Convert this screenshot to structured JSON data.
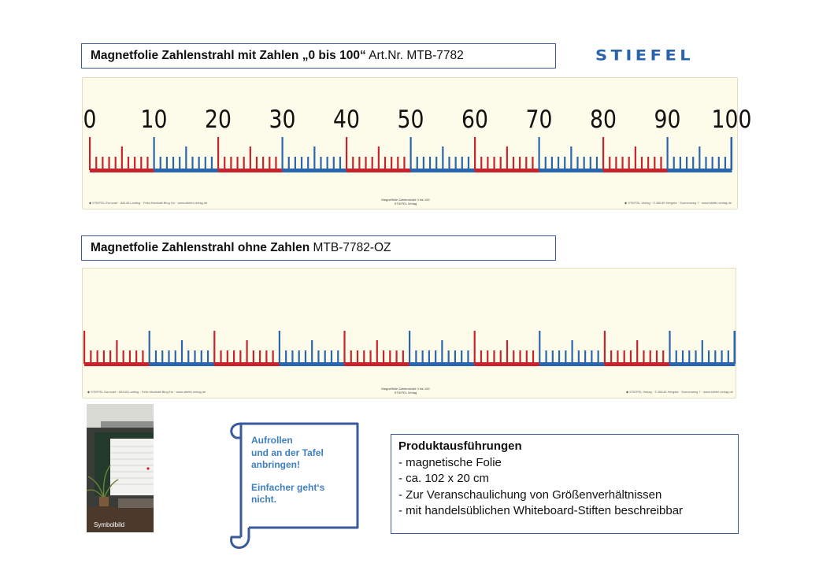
{
  "product1": {
    "title_bold": "Magnetfolie Zahlenstrahl mit Zahlen „0 bis 100“",
    "title_rest": " Art.Nr. MTB-7782"
  },
  "product2": {
    "title_bold": "Magnetfolie Zahlenstrahl ohne Zahlen",
    "title_rest": " MTB-7782-OZ"
  },
  "brand": {
    "logo_text": "STIEFEL",
    "logo_color": "#2a63ad"
  },
  "number_line": {
    "labels": [
      "0",
      "10",
      "20",
      "30",
      "40",
      "50",
      "60",
      "70",
      "80",
      "90",
      "100"
    ],
    "segment_colors": [
      "#c8232c",
      "#2a66b0",
      "#c8232c",
      "#2a66b0",
      "#c8232c",
      "#2a66b0",
      "#c8232c",
      "#2a66b0",
      "#c8232c",
      "#2a66b0"
    ],
    "strip_background": "#fdfbe9",
    "footer_left": "◆ STIEFEL Eurocart  ·  88145 Lanting  ·  Feilz.Monikaft.Bing Ho  ·  www.stiefel-verlag.de",
    "footer_center": "Magnetfolie Zahlenstrahl 0 bis 100",
    "footer_center_sub": "STIEFEL Verlag",
    "footer_right": "◆ STIEFEL Verlag  ·  © 88145 Hergatz  ·  Sonnenweg 7  ·  www.stiefel-verlag.de"
  },
  "photo": {
    "caption": "Symbolbild"
  },
  "scroll_note": {
    "lines1": [
      "Aufrollen",
      "und an der Tafel",
      "anbringen!"
    ],
    "lines2": [
      "Einfacher geht‘s",
      "nicht."
    ],
    "color": "#3f7fbf"
  },
  "product_variants": {
    "heading": "Produktausführungen",
    "items": [
      "- magnetische Folie",
      "- ca. 102 x 20 cm",
      "- Zur Veranschaulichung von  Größenverhältnissen",
      "- mit handelsüblichen Whiteboard-Stiften beschreibbar"
    ]
  }
}
